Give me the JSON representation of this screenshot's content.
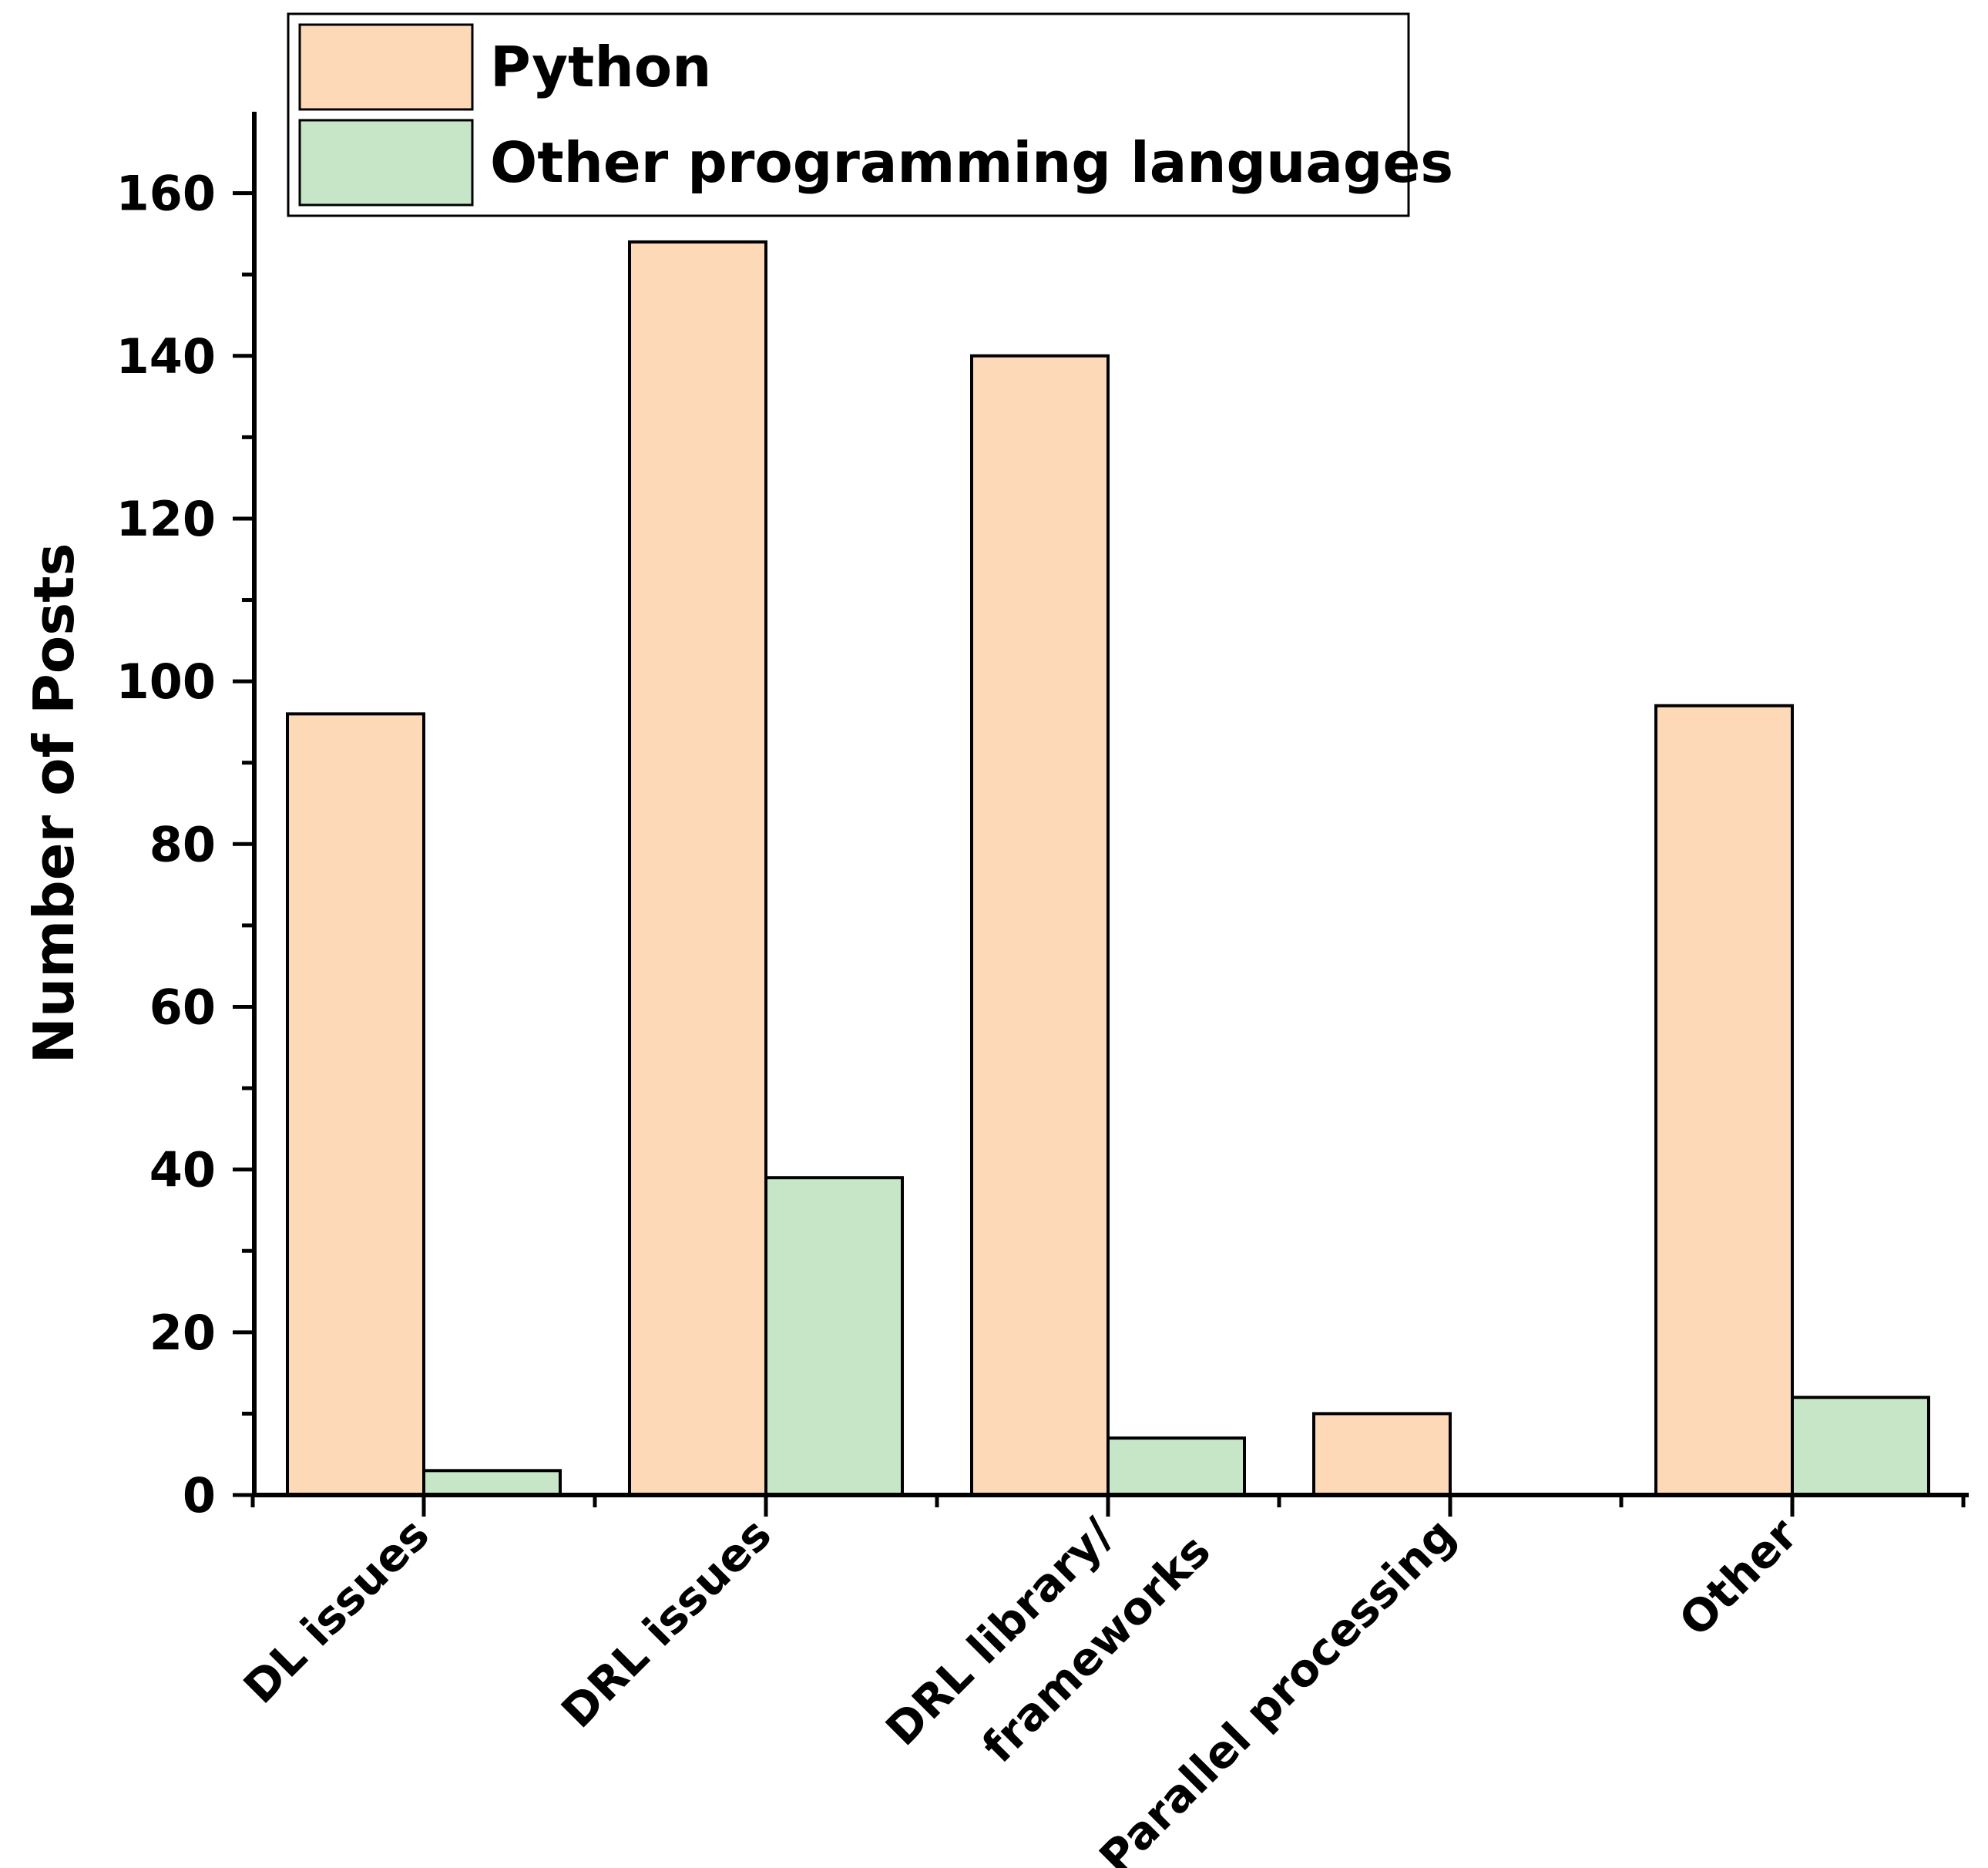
{
  "chart_data": {
    "type": "bar",
    "categories": [
      [
        "DL issues"
      ],
      [
        "DRL issues"
      ],
      [
        "DRL library/",
        "frameworks"
      ],
      [
        "Parallel processing"
      ],
      [
        "Other"
      ]
    ],
    "series": [
      {
        "name": "Python",
        "values": [
          96,
          154,
          140,
          10,
          97
        ],
        "color": "#FDD9B8"
      },
      {
        "name": "Other programming languages",
        "values": [
          3,
          39,
          7,
          0,
          12
        ],
        "color": "#C6E6C7"
      }
    ],
    "xlabel": "",
    "ylabel": "Number of Posts",
    "ylim": [
      0,
      170
    ],
    "yticks": [
      0,
      20,
      40,
      60,
      80,
      100,
      120,
      140,
      160
    ],
    "grid": false,
    "legend_position": "top-left"
  }
}
